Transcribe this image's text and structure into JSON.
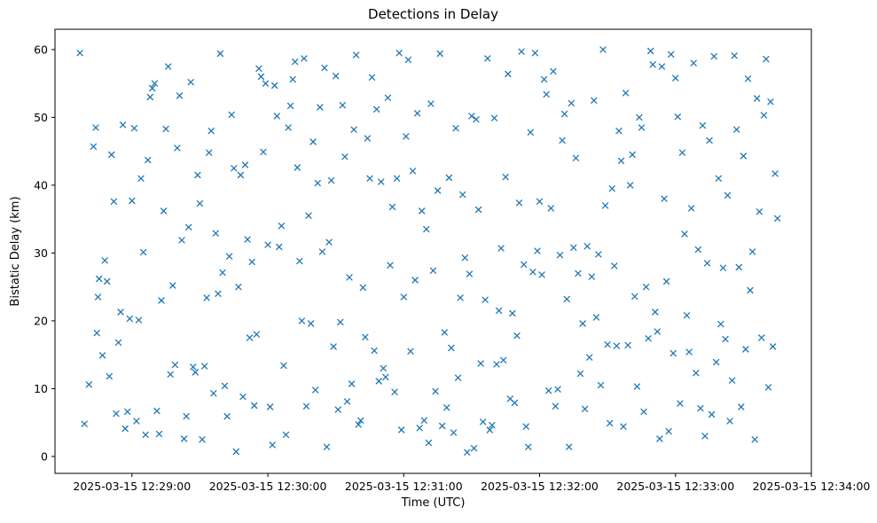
{
  "chart_data": {
    "type": "scatter",
    "title": "Detections in Delay",
    "xlabel": "Time (UTC)",
    "ylabel": "Bistatic Delay (km)",
    "marker": "x",
    "marker_color": "#1f77b4",
    "grid": false,
    "legend": "none",
    "x_unit": "seconds after 2025-03-15 12:28:00 UTC",
    "xlim": [
      26,
      360
    ],
    "ylim": [
      -2.5,
      63
    ],
    "x_ticks": [
      {
        "value": 60,
        "label": "2025-03-15 12:29:00"
      },
      {
        "value": 120,
        "label": "2025-03-15 12:30:00"
      },
      {
        "value": 180,
        "label": "2025-03-15 12:31:00"
      },
      {
        "value": 240,
        "label": "2025-03-15 12:32:00"
      },
      {
        "value": 300,
        "label": "2025-03-15 12:33:00"
      },
      {
        "value": 360,
        "label": "2025-03-15 12:34:00"
      }
    ],
    "y_ticks": [
      0,
      10,
      20,
      30,
      40,
      50,
      60
    ],
    "points": [
      [
        37,
        59.5
      ],
      [
        39,
        4.8
      ],
      [
        41,
        10.6
      ],
      [
        43,
        45.7
      ],
      [
        44,
        48.5
      ],
      [
        45,
        23.5
      ],
      [
        45.5,
        26.2
      ],
      [
        44.5,
        18.2
      ],
      [
        47,
        14.9
      ],
      [
        48,
        28.9
      ],
      [
        49,
        25.8
      ],
      [
        50,
        11.8
      ],
      [
        51,
        44.5
      ],
      [
        52,
        37.6
      ],
      [
        53,
        6.3
      ],
      [
        54,
        16.8
      ],
      [
        55,
        21.3
      ],
      [
        56,
        48.9
      ],
      [
        57,
        4.1
      ],
      [
        58,
        6.6
      ],
      [
        59,
        20.3
      ],
      [
        60,
        37.7
      ],
      [
        61,
        48.4
      ],
      [
        62,
        5.2
      ],
      [
        63,
        20.1
      ],
      [
        64,
        41.0
      ],
      [
        65,
        30.1
      ],
      [
        66,
        3.2
      ],
      [
        67,
        43.7
      ],
      [
        68,
        53.0
      ],
      [
        69,
        54.3
      ],
      [
        70,
        55.0
      ],
      [
        71,
        6.7
      ],
      [
        72,
        3.3
      ],
      [
        73,
        23.0
      ],
      [
        74,
        36.2
      ],
      [
        75,
        48.3
      ],
      [
        76,
        57.5
      ],
      [
        77,
        12.1
      ],
      [
        78,
        25.2
      ],
      [
        79,
        13.5
      ],
      [
        80,
        45.5
      ],
      [
        81,
        53.2
      ],
      [
        82,
        31.9
      ],
      [
        83,
        2.6
      ],
      [
        84,
        5.9
      ],
      [
        85,
        33.8
      ],
      [
        86,
        55.2
      ],
      [
        87,
        13.2
      ],
      [
        88,
        12.4
      ],
      [
        89,
        41.5
      ],
      [
        90,
        37.3
      ],
      [
        91,
        2.5
      ],
      [
        92,
        13.3
      ],
      [
        93,
        23.4
      ],
      [
        94,
        44.8
      ],
      [
        95,
        48.0
      ],
      [
        96,
        9.3
      ],
      [
        97,
        32.9
      ],
      [
        98,
        24.0
      ],
      [
        99,
        59.4
      ],
      [
        100,
        27.1
      ],
      [
        101,
        10.4
      ],
      [
        102,
        5.9
      ],
      [
        103,
        29.5
      ],
      [
        104,
        50.4
      ],
      [
        105,
        42.5
      ],
      [
        106,
        0.7
      ],
      [
        107,
        25.0
      ],
      [
        108,
        41.5
      ],
      [
        109,
        8.8
      ],
      [
        110,
        43.0
      ],
      [
        111,
        32.0
      ],
      [
        112,
        17.5
      ],
      [
        113,
        28.7
      ],
      [
        114,
        7.5
      ],
      [
        115,
        18.0
      ],
      [
        116,
        57.2
      ],
      [
        117,
        56.0
      ],
      [
        118,
        44.9
      ],
      [
        119,
        55.0
      ],
      [
        120,
        31.2
      ],
      [
        121,
        7.3
      ],
      [
        122,
        1.7
      ],
      [
        123,
        54.7
      ],
      [
        124,
        50.2
      ],
      [
        125,
        30.9
      ],
      [
        126,
        34.0
      ],
      [
        127,
        13.4
      ],
      [
        128,
        3.2
      ],
      [
        129,
        48.5
      ],
      [
        130,
        51.7
      ],
      [
        131,
        55.6
      ],
      [
        132,
        58.2
      ],
      [
        133,
        42.6
      ],
      [
        134,
        28.8
      ],
      [
        135,
        20.0
      ],
      [
        136,
        58.7
      ],
      [
        137,
        7.4
      ],
      [
        138,
        35.5
      ],
      [
        139,
        19.6
      ],
      [
        140,
        46.4
      ],
      [
        141,
        9.8
      ],
      [
        142,
        40.3
      ],
      [
        143,
        51.5
      ],
      [
        144,
        30.2
      ],
      [
        145,
        57.3
      ],
      [
        146,
        1.4
      ],
      [
        147,
        31.6
      ],
      [
        148,
        40.7
      ],
      [
        149,
        16.2
      ],
      [
        150,
        56.1
      ],
      [
        151,
        6.9
      ],
      [
        152,
        19.8
      ],
      [
        153,
        51.8
      ],
      [
        154,
        44.2
      ],
      [
        155,
        8.1
      ],
      [
        156,
        26.4
      ],
      [
        157,
        10.7
      ],
      [
        158,
        48.2
      ],
      [
        159,
        59.2
      ],
      [
        160,
        4.7
      ],
      [
        161,
        5.3
      ],
      [
        162,
        24.9
      ],
      [
        163,
        17.6
      ],
      [
        164,
        46.9
      ],
      [
        165,
        41.0
      ],
      [
        166,
        55.9
      ],
      [
        167,
        15.6
      ],
      [
        168,
        51.2
      ],
      [
        169,
        11.1
      ],
      [
        170,
        40.5
      ],
      [
        171,
        13.0
      ],
      [
        172,
        11.7
      ],
      [
        173,
        52.9
      ],
      [
        174,
        28.2
      ],
      [
        175,
        36.8
      ],
      [
        176,
        9.5
      ],
      [
        177,
        41.0
      ],
      [
        178,
        59.5
      ],
      [
        179,
        3.9
      ],
      [
        180,
        23.5
      ],
      [
        181,
        47.2
      ],
      [
        182,
        58.5
      ],
      [
        183,
        15.5
      ],
      [
        184,
        42.1
      ],
      [
        185,
        26.0
      ],
      [
        186,
        50.6
      ],
      [
        187,
        4.2
      ],
      [
        188,
        36.2
      ],
      [
        189,
        5.3
      ],
      [
        190,
        33.5
      ],
      [
        191,
        2.0
      ],
      [
        192,
        52.0
      ],
      [
        193,
        27.4
      ],
      [
        194,
        9.6
      ],
      [
        195,
        39.2
      ],
      [
        196,
        59.4
      ],
      [
        197,
        4.5
      ],
      [
        198,
        18.3
      ],
      [
        199,
        7.2
      ],
      [
        200,
        41.1
      ],
      [
        201,
        16.0
      ],
      [
        202,
        3.5
      ],
      [
        203,
        48.4
      ],
      [
        204,
        11.6
      ],
      [
        205,
        23.4
      ],
      [
        206,
        38.6
      ],
      [
        207,
        29.3
      ],
      [
        208,
        0.6
      ],
      [
        209,
        26.9
      ],
      [
        210,
        50.2
      ],
      [
        211,
        1.2
      ],
      [
        212,
        49.7
      ],
      [
        213,
        36.4
      ],
      [
        214,
        13.7
      ],
      [
        215,
        5.1
      ],
      [
        216,
        23.1
      ],
      [
        217,
        58.7
      ],
      [
        218,
        3.9
      ],
      [
        219,
        4.6
      ],
      [
        220,
        49.9
      ],
      [
        221,
        13.6
      ],
      [
        222,
        21.5
      ],
      [
        223,
        30.7
      ],
      [
        224,
        14.2
      ],
      [
        225,
        41.2
      ],
      [
        226,
        56.4
      ],
      [
        227,
        8.5
      ],
      [
        228,
        21.1
      ],
      [
        229,
        7.9
      ],
      [
        230,
        17.8
      ],
      [
        231,
        37.4
      ],
      [
        232,
        59.7
      ],
      [
        233,
        28.3
      ],
      [
        234,
        4.4
      ],
      [
        235,
        1.4
      ],
      [
        236,
        47.8
      ],
      [
        237,
        27.2
      ],
      [
        238,
        59.5
      ],
      [
        239,
        30.3
      ],
      [
        240,
        37.6
      ],
      [
        241,
        26.8
      ],
      [
        242,
        55.6
      ],
      [
        243,
        53.4
      ],
      [
        244,
        9.7
      ],
      [
        245,
        36.6
      ],
      [
        246,
        56.8
      ],
      [
        247,
        7.4
      ],
      [
        248,
        9.9
      ],
      [
        249,
        29.7
      ],
      [
        250,
        46.6
      ],
      [
        251,
        50.5
      ],
      [
        252,
        23.2
      ],
      [
        253,
        1.4
      ],
      [
        254,
        52.1
      ],
      [
        255,
        30.8
      ],
      [
        256,
        44.0
      ],
      [
        257,
        27.0
      ],
      [
        258,
        12.2
      ],
      [
        259,
        19.6
      ],
      [
        260,
        7.0
      ],
      [
        261,
        31.0
      ],
      [
        262,
        14.6
      ],
      [
        263,
        26.5
      ],
      [
        264,
        52.5
      ],
      [
        265,
        20.5
      ],
      [
        266,
        29.8
      ],
      [
        267,
        10.5
      ],
      [
        268,
        60.0
      ],
      [
        269,
        37.0
      ],
      [
        270,
        16.5
      ],
      [
        271,
        4.9
      ],
      [
        272,
        39.5
      ],
      [
        273,
        28.1
      ],
      [
        274,
        16.3
      ],
      [
        275,
        48.0
      ],
      [
        276,
        43.6
      ],
      [
        277,
        4.4
      ],
      [
        278,
        53.6
      ],
      [
        279,
        16.4
      ],
      [
        280,
        40.0
      ],
      [
        281,
        44.5
      ],
      [
        282,
        23.6
      ],
      [
        283,
        10.3
      ],
      [
        284,
        50.0
      ],
      [
        285,
        48.5
      ],
      [
        286,
        6.6
      ],
      [
        287,
        25.0
      ],
      [
        288,
        17.4
      ],
      [
        289,
        59.8
      ],
      [
        290,
        57.8
      ],
      [
        291,
        21.3
      ],
      [
        292,
        18.4
      ],
      [
        293,
        2.6
      ],
      [
        294,
        57.5
      ],
      [
        295,
        38.0
      ],
      [
        296,
        25.8
      ],
      [
        297,
        3.7
      ],
      [
        298,
        59.3
      ],
      [
        299,
        15.2
      ],
      [
        300,
        55.8
      ],
      [
        301,
        50.1
      ],
      [
        302,
        7.8
      ],
      [
        303,
        44.8
      ],
      [
        304,
        32.8
      ],
      [
        305,
        20.8
      ],
      [
        306,
        15.4
      ],
      [
        307,
        36.6
      ],
      [
        308,
        58.0
      ],
      [
        309,
        12.3
      ],
      [
        310,
        30.5
      ],
      [
        311,
        7.1
      ],
      [
        312,
        48.8
      ],
      [
        313,
        3.0
      ],
      [
        314,
        28.5
      ],
      [
        315,
        46.6
      ],
      [
        316,
        6.2
      ],
      [
        317,
        59.0
      ],
      [
        318,
        13.9
      ],
      [
        319,
        41.0
      ],
      [
        320,
        19.5
      ],
      [
        321,
        27.8
      ],
      [
        322,
        17.3
      ],
      [
        323,
        38.5
      ],
      [
        324,
        5.2
      ],
      [
        325,
        11.2
      ],
      [
        326,
        59.1
      ],
      [
        327,
        48.2
      ],
      [
        328,
        27.9
      ],
      [
        329,
        7.3
      ],
      [
        330,
        44.3
      ],
      [
        331,
        15.8
      ],
      [
        332,
        55.7
      ],
      [
        333,
        24.5
      ],
      [
        334,
        30.2
      ],
      [
        335,
        2.5
      ],
      [
        336,
        52.8
      ],
      [
        337,
        36.1
      ],
      [
        338,
        17.5
      ],
      [
        339,
        50.3
      ],
      [
        340,
        58.6
      ],
      [
        341,
        10.2
      ],
      [
        342,
        52.3
      ],
      [
        343,
        16.2
      ],
      [
        344,
        41.7
      ],
      [
        345,
        35.1
      ]
    ]
  }
}
